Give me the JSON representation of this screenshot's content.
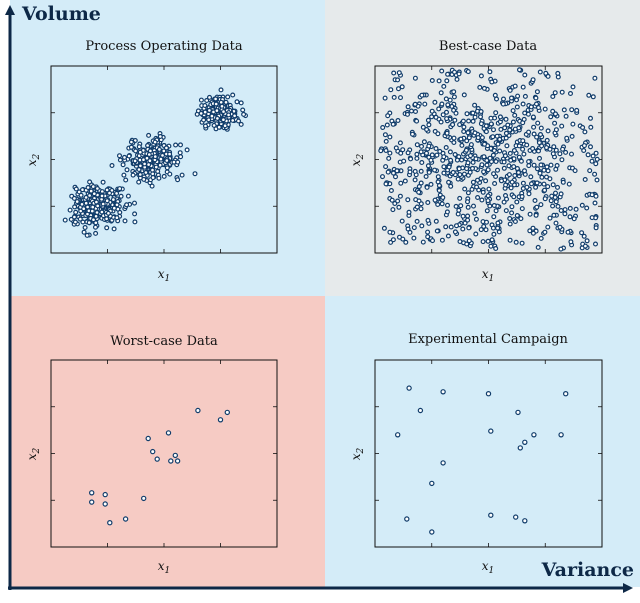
{
  "colors": {
    "axis": "#0d2847",
    "marker_stroke": "#113d6b",
    "marker_fill": "#ffffff",
    "quadrant_tl": "#d4ecf8",
    "quadrant_tr": "#e6eaeb",
    "quadrant_bl": "#f6cbc4",
    "quadrant_br": "#d4ecf8"
  },
  "axes": {
    "y_label": "Volume",
    "x_label": "Variance"
  },
  "chart_data": [
    {
      "type": "scatter",
      "title": "Process Operating Data",
      "xlabel": "x1",
      "ylabel": "x2",
      "xlim": [
        0,
        10
      ],
      "ylim": [
        0,
        10
      ],
      "grid": false,
      "clusters": [
        {
          "center": [
            2.0,
            2.5
          ],
          "spread": [
            0.55,
            0.55
          ],
          "count": 300
        },
        {
          "center": [
            4.5,
            5.0
          ],
          "spread": [
            0.6,
            0.55
          ],
          "count": 260
        },
        {
          "center": [
            7.5,
            7.5
          ],
          "spread": [
            0.45,
            0.4
          ],
          "count": 220
        }
      ]
    },
    {
      "type": "scatter",
      "title": "Best-case Data",
      "xlabel": "x1",
      "ylabel": "x2",
      "xlim": [
        0,
        10
      ],
      "ylim": [
        0,
        10
      ],
      "grid": false,
      "distribution": "uniform-with-central-concentration",
      "count": 900
    },
    {
      "type": "scatter",
      "title": "Worst-case Data",
      "xlabel": "x1",
      "ylabel": "x2",
      "xlim": [
        0,
        10
      ],
      "ylim": [
        0,
        10
      ],
      "grid": false,
      "points": [
        [
          1.8,
          2.9
        ],
        [
          1.8,
          2.4
        ],
        [
          2.4,
          2.8
        ],
        [
          2.4,
          2.3
        ],
        [
          2.6,
          1.3
        ],
        [
          3.3,
          1.5
        ],
        [
          4.1,
          2.6
        ],
        [
          4.3,
          5.8
        ],
        [
          4.5,
          5.1
        ],
        [
          4.7,
          4.7
        ],
        [
          5.2,
          6.1
        ],
        [
          5.3,
          4.6
        ],
        [
          5.5,
          4.9
        ],
        [
          5.6,
          4.6
        ],
        [
          6.5,
          7.3
        ],
        [
          7.5,
          6.8
        ],
        [
          7.8,
          7.2
        ]
      ]
    },
    {
      "type": "scatter",
      "title": "Experimental Campaign",
      "xlabel": "x1",
      "ylabel": "x2",
      "xlim": [
        0,
        10
      ],
      "ylim": [
        0,
        10
      ],
      "grid": false,
      "points": [
        [
          1.0,
          6.0
        ],
        [
          1.5,
          8.5
        ],
        [
          2.0,
          7.3
        ],
        [
          3.0,
          8.3
        ],
        [
          1.4,
          1.5
        ],
        [
          2.5,
          0.8
        ],
        [
          2.5,
          3.4
        ],
        [
          3.0,
          4.5
        ],
        [
          5.0,
          8.2
        ],
        [
          5.1,
          6.2
        ],
        [
          5.1,
          1.7
        ],
        [
          6.3,
          7.2
        ],
        [
          6.4,
          5.3
        ],
        [
          6.6,
          5.6
        ],
        [
          7.0,
          6.0
        ],
        [
          6.2,
          1.6
        ],
        [
          6.6,
          1.4
        ],
        [
          8.2,
          6.0
        ],
        [
          8.4,
          8.2
        ]
      ]
    }
  ]
}
